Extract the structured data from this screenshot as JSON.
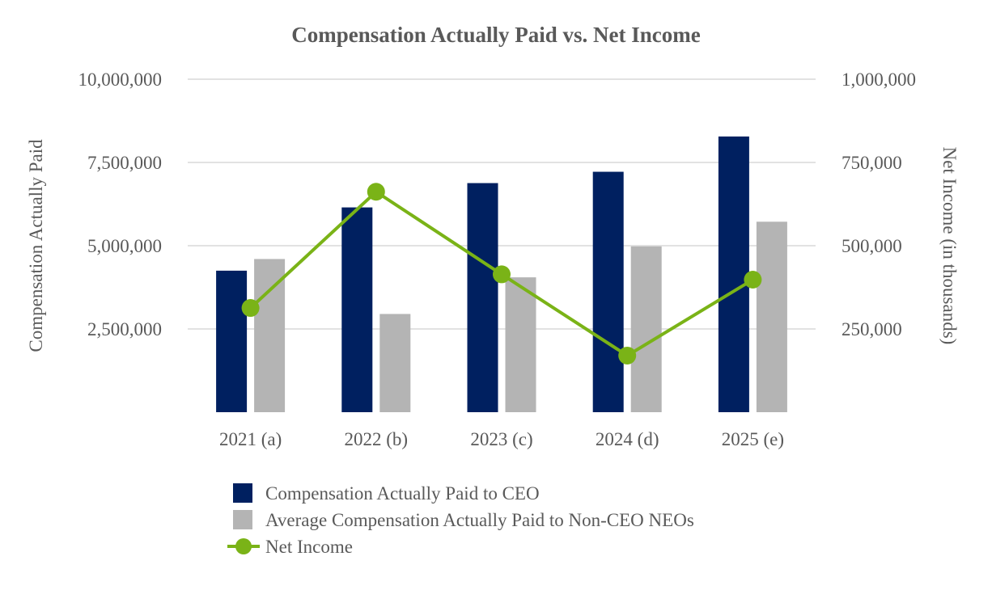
{
  "chart_data": {
    "type": "bar",
    "title": "Compensation Actually Paid vs. Net Income",
    "categories": [
      "2021 (a)",
      "2022 (b)",
      "2023 (c)",
      "2024 (d)",
      "2025 (e)"
    ],
    "ylabel": "Compensation Actually Paid",
    "y2label": "Net Income (in thousands)",
    "ylim": [
      0,
      10000000
    ],
    "y2lim": [
      0,
      1000000
    ],
    "yticks": [
      2500000,
      5000000,
      7500000,
      10000000
    ],
    "yticks_labels": [
      "2,500,000",
      "5,000,000",
      "7,500,000",
      "10,000,000"
    ],
    "y2ticks": [
      250000,
      500000,
      750000,
      1000000
    ],
    "y2ticks_labels": [
      "250,000",
      "500,000",
      "750,000",
      "1,000,000"
    ],
    "grid": true,
    "legend_position": "bottom",
    "series": [
      {
        "name": "Compensation Actually Paid to CEO",
        "type": "bar",
        "axis": "left",
        "color": "#002060",
        "values": [
          4250000,
          6150000,
          6880000,
          7220000,
          8280000
        ]
      },
      {
        "name": "Average Compensation Actually Paid to Non-CEO NEOs",
        "type": "bar",
        "axis": "left",
        "color": "#b4b4b4",
        "values": [
          4600000,
          2950000,
          4050000,
          4980000,
          5720000
        ]
      },
      {
        "name": "Net Income",
        "type": "line",
        "axis": "right",
        "color": "#7ab317",
        "values": [
          313000,
          662000,
          414000,
          170000,
          398000
        ]
      }
    ]
  }
}
